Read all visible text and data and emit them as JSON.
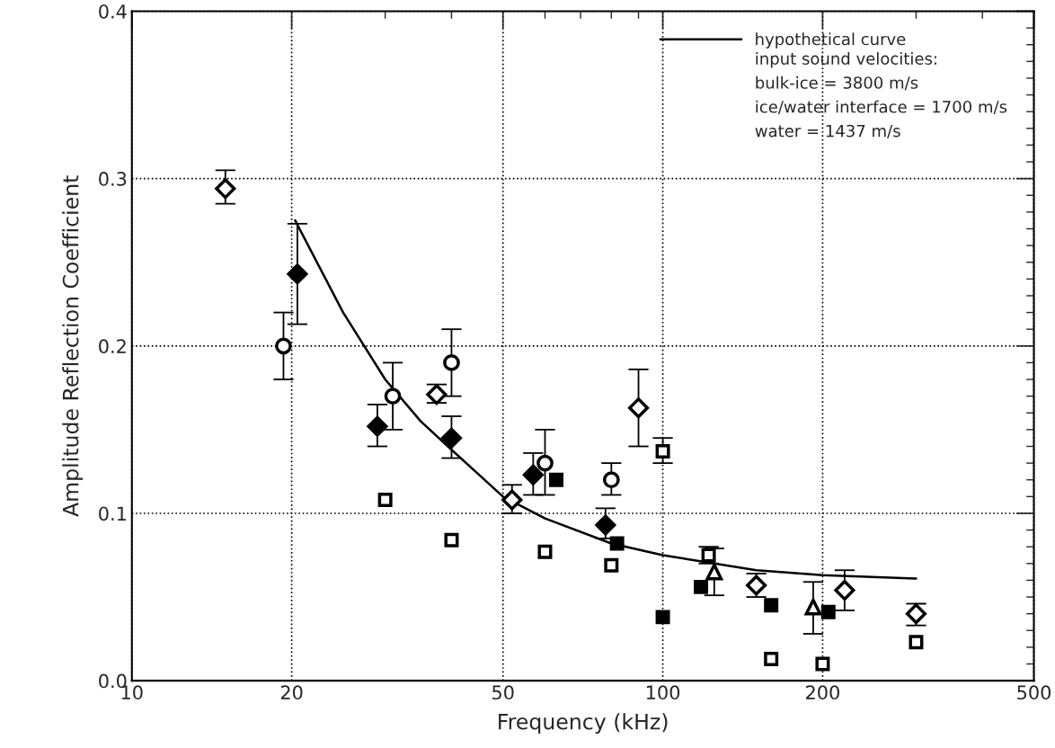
{
  "chart_data": {
    "type": "scatter",
    "xlabel": "Frequency (kHz)",
    "ylabel": "Amplitude Reflection Coefficient",
    "log": "x",
    "xlim": [
      10,
      500
    ],
    "xticks": [
      10,
      20,
      50,
      100,
      200,
      500
    ],
    "ylim": [
      0,
      0.4
    ],
    "yticks": [
      {
        "value": 0,
        "label": "0.0"
      },
      0.1,
      0.2,
      0.3,
      0.4
    ],
    "grid": true,
    "legend": "top right",
    "annotations": [
      "input sound velocities:",
      "bulk-ice = 3800 m/s",
      "ice/water interface = 1700 m/s",
      "water = 1437 m/s"
    ],
    "series": [
      {
        "name": "hypothetical curve",
        "type": "line",
        "color": "#000000",
        "marker": "none",
        "line_style": "solid",
        "x": [
          20.3,
          25,
          30,
          35,
          40,
          50,
          60,
          80,
          100,
          150,
          200,
          300
        ],
        "values": [
          0.275,
          0.22,
          0.18,
          0.155,
          0.138,
          0.11,
          0.097,
          0.082,
          0.075,
          0.066,
          0.063,
          0.061
        ]
      },
      {
        "marker": "diamond-open",
        "color": "#000000",
        "x": [
          15,
          37.5,
          52,
          90,
          150,
          220,
          300
        ],
        "values": [
          0.294,
          0.171,
          0.108,
          0.163,
          0.057,
          0.054,
          0.04
        ],
        "errors": [
          [
            0.285,
            0.305
          ],
          [
            0.166,
            0.177
          ],
          [
            0.1,
            0.117
          ],
          [
            0.14,
            0.186
          ],
          [
            0.05,
            0.064
          ],
          [
            0.042,
            0.066
          ],
          [
            0.033,
            0.046
          ]
        ]
      },
      {
        "marker": "diamond",
        "color": "#000000",
        "x": [
          20.5,
          29,
          40,
          57,
          78
        ],
        "values": [
          0.243,
          0.152,
          0.145,
          0.123,
          0.093
        ],
        "errors": [
          [
            0.213,
            0.273
          ],
          [
            0.14,
            0.165
          ],
          [
            0.133,
            0.158
          ],
          [
            0.111,
            0.136
          ],
          [
            0.085,
            0.103
          ]
        ]
      },
      {
        "marker": "circle-open",
        "color": "#000000",
        "x": [
          19.3,
          31,
          40,
          60,
          80
        ],
        "values": [
          0.2,
          0.17,
          0.19,
          0.13,
          0.12
        ],
        "errors": [
          [
            0.18,
            0.22
          ],
          [
            0.15,
            0.19
          ],
          [
            0.17,
            0.21
          ],
          [
            0.111,
            0.15
          ],
          [
            0.111,
            0.13
          ]
        ]
      },
      {
        "marker": "square-open",
        "color": "#000000",
        "x": [
          30,
          40,
          60,
          80,
          100,
          122,
          160,
          200,
          300
        ],
        "values": [
          0.108,
          0.084,
          0.077,
          0.069,
          0.137,
          0.075,
          0.013,
          0.01,
          0.023
        ],
        "errors": [
          null,
          null,
          null,
          null,
          [
            0.13,
            0.145
          ],
          [
            0.07,
            0.08
          ],
          null,
          null,
          null
        ]
      },
      {
        "marker": "square",
        "color": "#000000",
        "x": [
          63,
          82,
          100,
          118,
          160,
          205
        ],
        "values": [
          0.12,
          0.082,
          0.038,
          0.056,
          0.045,
          0.041
        ]
      },
      {
        "marker": "triangle-open",
        "color": "#000000",
        "x": [
          125,
          192
        ],
        "values": [
          0.065,
          0.044
        ],
        "errors": [
          [
            0.051,
            0.079
          ],
          [
            0.028,
            0.059
          ]
        ]
      }
    ]
  }
}
